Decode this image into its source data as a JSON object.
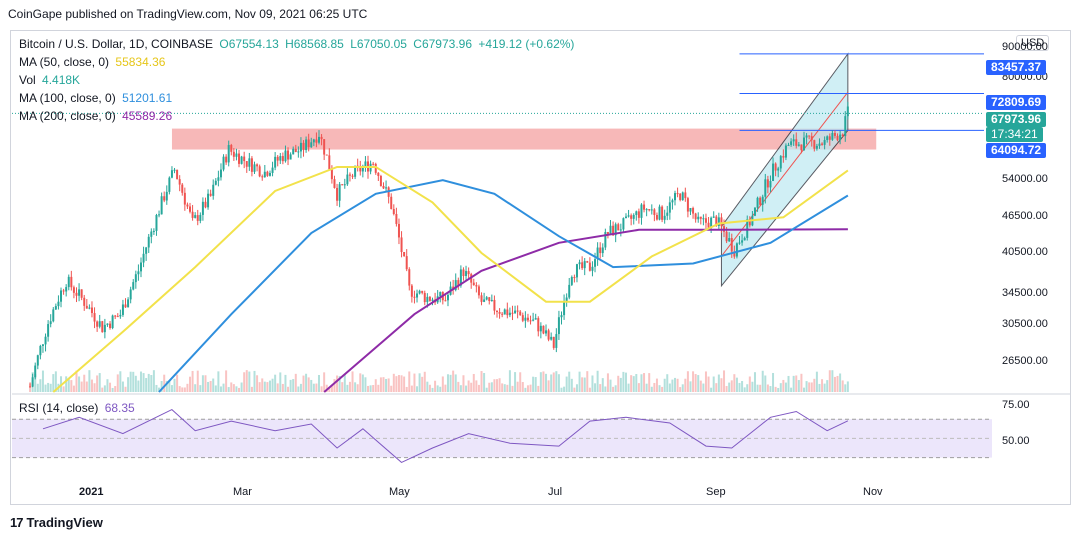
{
  "publisher": "CoinGape published on TradingView.com, Nov 09, 2021 06:25 UTC",
  "legend": {
    "symbol": "Bitcoin / U.S. Dollar, 1D, COINBASE",
    "o": "O67554.13",
    "h": "H68568.85",
    "l": "L67050.05",
    "c": "C67973.96",
    "change": "+419.12 (+0.62%)",
    "ma50_label": "MA (50, close, 0)",
    "ma50_value": "55834.36",
    "vol_label": "Vol",
    "vol_value": "4.418K",
    "ma100_label": "MA (100, close, 0)",
    "ma100_value": "51201.61",
    "ma200_label": "MA (200, close, 0)",
    "ma200_value": "45589.26"
  },
  "currency": "USD",
  "price_tags": {
    "t1": "83457.37",
    "t2": "72809.69",
    "t3": "67973.96",
    "t3_time": "17:34:21",
    "t4": "64094.72"
  },
  "price_axis": [
    "90000.00",
    "80000.00",
    "54000.00",
    "46500.00",
    "40500.00",
    "34500.00",
    "30500.00",
    "26500.00"
  ],
  "rsi": {
    "label": "RSI (14, close)",
    "value": "68.35",
    "axis": [
      "75.00",
      "50.00"
    ]
  },
  "time_axis": [
    "2021",
    "Mar",
    "May",
    "Jul",
    "Sep",
    "Nov"
  ],
  "branding": "TradingView",
  "colors": {
    "up": "#26a69a",
    "down": "#ef5350",
    "ma50": "#f2e24b",
    "ma100": "#2f8fdd",
    "ma200": "#8e2ba7",
    "rsi": "#7e57c2",
    "tag_blue": "#2962ff",
    "resistance": "#f4a0a0",
    "channel": "#bde9f2"
  },
  "chart_data": {
    "type": "candlestick",
    "title": "Bitcoin / U.S. Dollar, 1D, COINBASE",
    "scale": "log",
    "ylim": [
      26000,
      90000
    ],
    "x_range": [
      "2020-12-20",
      "2021-12-31"
    ],
    "weekly_close": [
      [
        "2020-12-27",
        26500
      ],
      [
        "2021-01-03",
        33000
      ],
      [
        "2021-01-10",
        38200
      ],
      [
        "2021-01-17",
        35500
      ],
      [
        "2021-01-24",
        32500
      ],
      [
        "2021-01-31",
        34000
      ],
      [
        "2021-02-07",
        39500
      ],
      [
        "2021-02-14",
        47500
      ],
      [
        "2021-02-21",
        56000
      ],
      [
        "2021-02-28",
        46500
      ],
      [
        "2021-03-07",
        51000
      ],
      [
        "2021-03-14",
        60000
      ],
      [
        "2021-03-21",
        57500
      ],
      [
        "2021-03-28",
        55500
      ],
      [
        "2021-04-04",
        58800
      ],
      [
        "2021-04-11",
        60000
      ],
      [
        "2021-04-18",
        63500
      ],
      [
        "2021-04-25",
        51500
      ],
      [
        "2021-05-02",
        55500
      ],
      [
        "2021-05-09",
        57500
      ],
      [
        "2021-05-16",
        49500
      ],
      [
        "2021-05-23",
        37000
      ],
      [
        "2021-05-30",
        36000
      ],
      [
        "2021-06-06",
        35800
      ],
      [
        "2021-06-13",
        39500
      ],
      [
        "2021-06-20",
        35500
      ],
      [
        "2021-06-27",
        34500
      ],
      [
        "2021-07-04",
        34000
      ],
      [
        "2021-07-11",
        33000
      ],
      [
        "2021-07-18",
        30500
      ],
      [
        "2021-07-25",
        39500
      ],
      [
        "2021-08-01",
        40000
      ],
      [
        "2021-08-08",
        45000
      ],
      [
        "2021-08-15",
        46500
      ],
      [
        "2021-08-22",
        49000
      ],
      [
        "2021-08-29",
        48000
      ],
      [
        "2021-09-05",
        51500
      ],
      [
        "2021-09-12",
        46500
      ],
      [
        "2021-09-19",
        47000
      ],
      [
        "2021-09-26",
        42500
      ],
      [
        "2021-10-03",
        47500
      ],
      [
        "2021-10-10",
        55000
      ],
      [
        "2021-10-17",
        61000
      ],
      [
        "2021-10-24",
        61500
      ],
      [
        "2021-10-31",
        61500
      ],
      [
        "2021-11-07",
        64000
      ],
      [
        "2021-11-09",
        67973.96
      ]
    ],
    "ma50": [
      [
        "2021-01-05",
        26000
      ],
      [
        "2021-02-01",
        32000
      ],
      [
        "2021-03-01",
        40000
      ],
      [
        "2021-04-01",
        52000
      ],
      [
        "2021-04-25",
        56500
      ],
      [
        "2021-05-10",
        56500
      ],
      [
        "2021-06-01",
        50000
      ],
      [
        "2021-06-20",
        42000
      ],
      [
        "2021-07-15",
        35500
      ],
      [
        "2021-08-01",
        35500
      ],
      [
        "2021-08-25",
        41500
      ],
      [
        "2021-09-20",
        46500
      ],
      [
        "2021-10-15",
        47500
      ],
      [
        "2021-11-09",
        55834.36
      ]
    ],
    "ma100": [
      [
        "2021-02-15",
        26000
      ],
      [
        "2021-03-15",
        34000
      ],
      [
        "2021-04-15",
        45000
      ],
      [
        "2021-05-10",
        51500
      ],
      [
        "2021-06-05",
        54000
      ],
      [
        "2021-06-25",
        51500
      ],
      [
        "2021-07-20",
        44500
      ],
      [
        "2021-08-10",
        40000
      ],
      [
        "2021-09-10",
        40500
      ],
      [
        "2021-10-10",
        43500
      ],
      [
        "2021-11-09",
        51201.61
      ]
    ],
    "ma200": [
      [
        "2021-04-20",
        26000
      ],
      [
        "2021-05-25",
        34000
      ],
      [
        "2021-06-20",
        39500
      ],
      [
        "2021-07-20",
        43500
      ],
      [
        "2021-08-20",
        45500
      ],
      [
        "2021-09-20",
        45500
      ],
      [
        "2021-11-09",
        45589.26
      ]
    ],
    "resistance_zone": [
      60000,
      64500
    ],
    "channel": {
      "lower": [
        [
          "2021-09-21",
          37500
        ],
        [
          "2021-11-09",
          64094.72
        ]
      ],
      "upper": [
        [
          "2021-09-21",
          46000
        ],
        [
          "2021-11-09",
          83457.37
        ]
      ]
    },
    "horizontal_levels": [
      83457.37,
      72809.69,
      64094.72
    ],
    "rsi_series": [
      [
        "2021-01-01",
        60
      ],
      [
        "2021-01-15",
        72
      ],
      [
        "2021-02-01",
        55
      ],
      [
        "2021-02-20",
        80
      ],
      [
        "2021-03-01",
        58
      ],
      [
        "2021-03-15",
        68
      ],
      [
        "2021-04-01",
        58
      ],
      [
        "2021-04-15",
        65
      ],
      [
        "2021-04-25",
        40
      ],
      [
        "2021-05-05",
        60
      ],
      [
        "2021-05-20",
        25
      ],
      [
        "2021-06-01",
        40
      ],
      [
        "2021-06-15",
        55
      ],
      [
        "2021-07-01",
        45
      ],
      [
        "2021-07-20",
        42
      ],
      [
        "2021-08-01",
        68
      ],
      [
        "2021-08-15",
        72
      ],
      [
        "2021-09-01",
        66
      ],
      [
        "2021-09-15",
        42
      ],
      [
        "2021-09-25",
        40
      ],
      [
        "2021-10-10",
        72
      ],
      [
        "2021-10-20",
        78
      ],
      [
        "2021-11-01",
        58
      ],
      [
        "2021-11-09",
        68.35
      ]
    ],
    "rsi_band": [
      30,
      70
    ]
  }
}
